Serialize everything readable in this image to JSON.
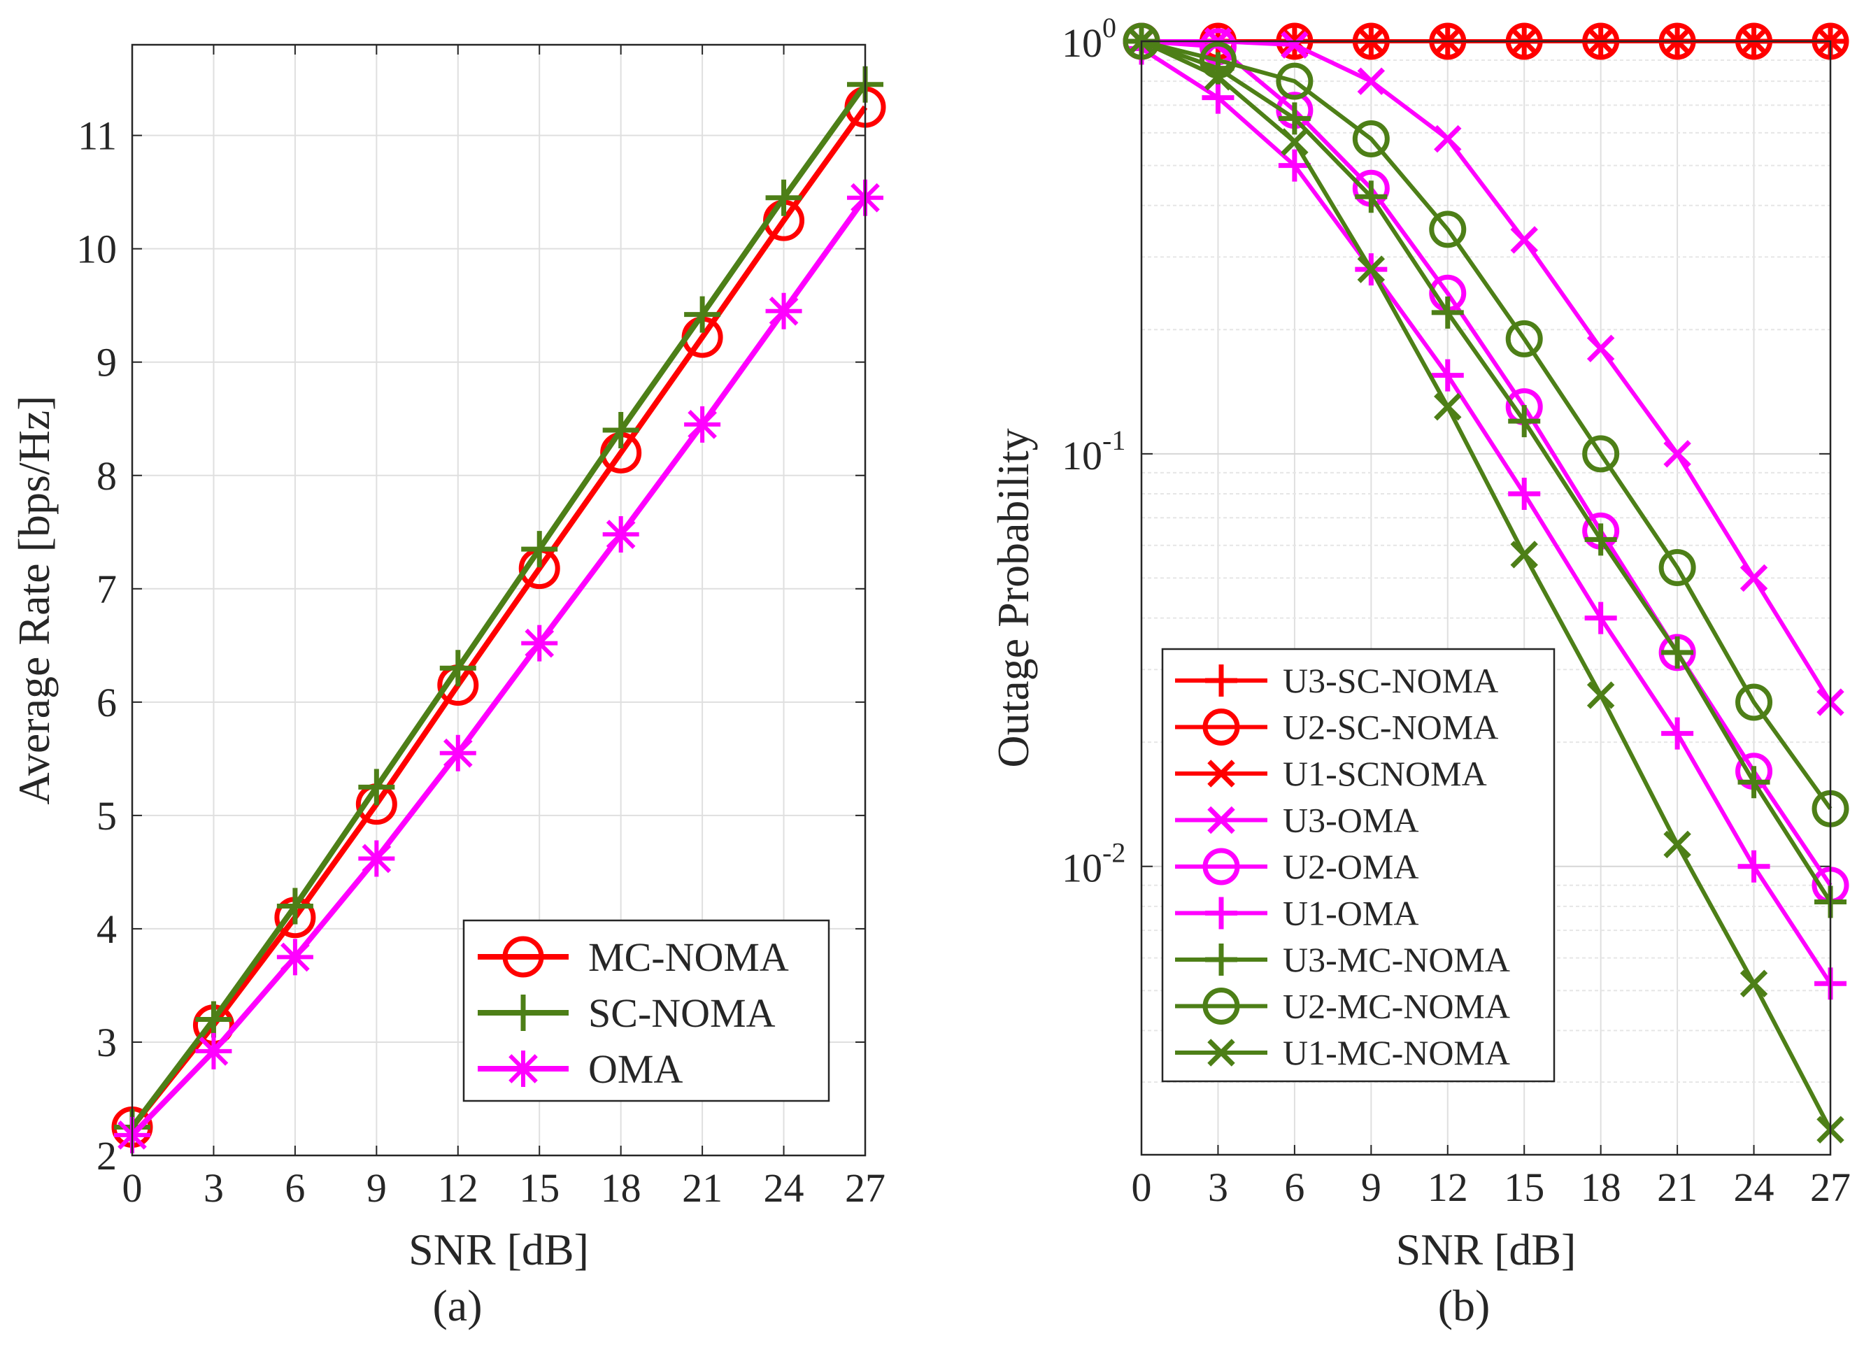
{
  "chart_data": [
    {
      "type": "line",
      "caption": "(a)",
      "xlabel": "SNR [dB]",
      "ylabel": "Average Rate [bps/Hz]",
      "x": [
        0,
        3,
        6,
        9,
        12,
        15,
        18,
        21,
        24,
        27
      ],
      "xlim": [
        0,
        27
      ],
      "ylim": [
        2,
        11.8
      ],
      "xticks": [
        0,
        3,
        6,
        9,
        12,
        15,
        18,
        21,
        24,
        27
      ],
      "yticks": [
        2,
        3,
        4,
        5,
        6,
        7,
        8,
        9,
        10,
        11
      ],
      "grid": true,
      "legend_position": "bottom-right",
      "series": [
        {
          "name": "MC-NOMA",
          "color": "#ff0000",
          "marker": "circle",
          "values": [
            2.25,
            3.15,
            4.1,
            5.1,
            6.15,
            7.18,
            8.2,
            9.22,
            10.25,
            11.25
          ]
        },
        {
          "name": "SC-NOMA",
          "color": "#4d7f17",
          "marker": "plus",
          "values": [
            2.25,
            3.2,
            4.2,
            5.25,
            6.3,
            7.35,
            8.4,
            9.42,
            10.45,
            11.45
          ]
        },
        {
          "name": "OMA",
          "color": "#ff00ff",
          "marker": "asterisk",
          "values": [
            2.18,
            2.92,
            3.75,
            4.62,
            5.55,
            6.52,
            7.48,
            8.45,
            9.45,
            10.45
          ]
        }
      ]
    },
    {
      "type": "line",
      "caption": "(b)",
      "xlabel": "SNR [dB]",
      "ylabel": "Outage Probability",
      "yscale": "log",
      "x": [
        0,
        3,
        6,
        9,
        12,
        15,
        18,
        21,
        24,
        27
      ],
      "xlim": [
        0,
        27
      ],
      "ylim": [
        0.002,
        1
      ],
      "xticks": [
        0,
        3,
        6,
        9,
        12,
        15,
        18,
        21,
        24,
        27
      ],
      "ytick_labels": [
        {
          "value": 1,
          "base": "10",
          "exp": "0"
        },
        {
          "value": 0.1,
          "base": "10",
          "exp": "-1"
        },
        {
          "value": 0.01,
          "base": "10",
          "exp": "-2"
        }
      ],
      "grid": true,
      "legend_position": "bottom-left",
      "series": [
        {
          "name": "U3-SC-NOMA",
          "color": "#ff0000",
          "marker": "plus",
          "values": [
            1,
            1,
            1,
            1,
            1,
            1,
            1,
            1,
            1,
            1
          ]
        },
        {
          "name": "U2-SC-NOMA",
          "color": "#ff0000",
          "marker": "circle",
          "values": [
            1,
            1,
            1,
            1,
            1,
            1,
            1,
            1,
            1,
            1
          ]
        },
        {
          "name": "U1-SCNOMA",
          "color": "#ff0000",
          "marker": "x",
          "values": [
            1,
            1,
            1,
            1,
            1,
            1,
            1,
            1,
            1,
            1
          ]
        },
        {
          "name": "U3-OMA",
          "color": "#ff00ff",
          "marker": "x",
          "values": [
            1,
            1,
            0.98,
            0.8,
            0.58,
            0.33,
            0.18,
            0.1,
            0.05,
            0.025
          ]
        },
        {
          "name": "U2-OMA",
          "color": "#ff00ff",
          "marker": "circle",
          "values": [
            1,
            0.97,
            0.68,
            0.44,
            0.245,
            0.13,
            0.065,
            0.033,
            0.017,
            0.009
          ]
        },
        {
          "name": "U1-OMA",
          "color": "#ff00ff",
          "marker": "plus",
          "values": [
            0.96,
            0.73,
            0.5,
            0.28,
            0.155,
            0.08,
            0.04,
            0.021,
            0.01,
            0.0052
          ]
        },
        {
          "name": "U3-MC-NOMA",
          "color": "#4d7f17",
          "marker": "plus",
          "values": [
            1,
            0.86,
            0.65,
            0.42,
            0.22,
            0.12,
            0.062,
            0.033,
            0.016,
            0.0082
          ]
        },
        {
          "name": "U2-MC-NOMA",
          "color": "#4d7f17",
          "marker": "circle",
          "values": [
            1,
            0.9,
            0.8,
            0.58,
            0.35,
            0.19,
            0.1,
            0.053,
            0.025,
            0.0138
          ]
        },
        {
          "name": "U1-MC-NOMA",
          "color": "#4d7f17",
          "marker": "x",
          "values": [
            1,
            0.82,
            0.57,
            0.28,
            0.13,
            0.057,
            0.026,
            0.0113,
            0.0052,
            0.0023
          ]
        }
      ]
    }
  ]
}
